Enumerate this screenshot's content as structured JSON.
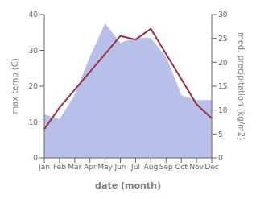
{
  "chart_data": {
    "type": "line",
    "categories": [
      "Jan",
      "Feb",
      "Mar",
      "Apr",
      "May",
      "Jun",
      "Jul",
      "Aug",
      "Sep",
      "Oct",
      "Nov",
      "Dec"
    ],
    "xlabel": "date (month)",
    "ylabel": "max temp (C)",
    "y2label": "med. precipitation (kg/m2)",
    "series": [
      {
        "type": "area",
        "axis": "y2",
        "color": "#b8bfe8",
        "values": [
          9,
          8,
          13,
          21,
          28,
          24,
          25,
          25,
          21,
          13,
          12,
          12
        ]
      },
      {
        "type": "line",
        "axis": "y",
        "color": "#993344",
        "values": [
          8,
          14,
          19,
          24,
          29,
          34,
          33,
          36,
          29,
          22,
          15,
          11
        ]
      }
    ],
    "ylim": [
      0,
      40
    ],
    "yticks": [
      0,
      10,
      20,
      30,
      40
    ],
    "y2lim": [
      0,
      30
    ],
    "y2ticks": [
      0,
      5,
      10,
      15,
      20,
      25,
      30
    ],
    "grid": false
  }
}
